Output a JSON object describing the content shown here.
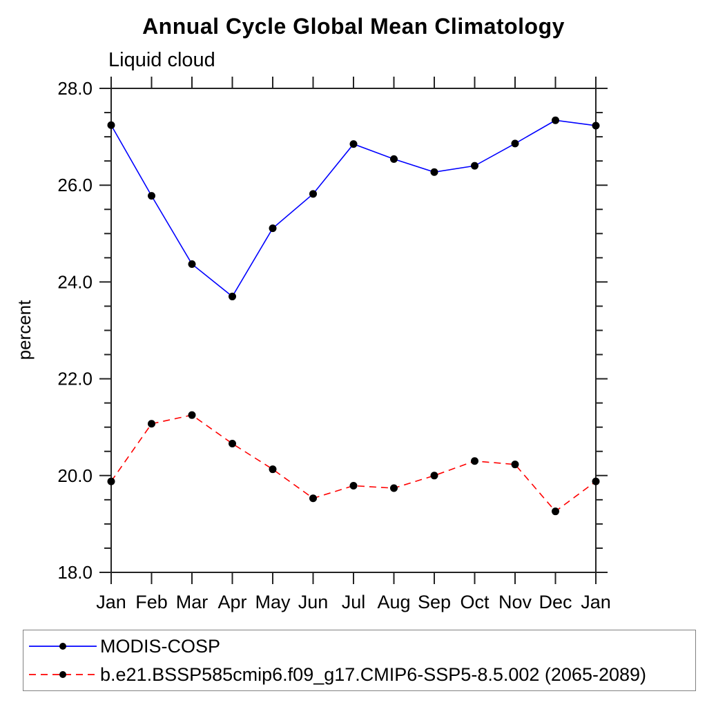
{
  "title": "Annual Cycle Global Mean Climatology",
  "subtitle": "Liquid cloud",
  "legend": {
    "entries": [
      {
        "label": "MODIS-COSP",
        "color": "#0000ff",
        "dash": "solid",
        "marker_color": "#000000"
      },
      {
        "label": "b.e21.BSSP585cmip6.f09_g17.CMIP6-SSP5-8.5.002 (2065-2089)",
        "color": "#ff0000",
        "dash": "dashed",
        "marker_color": "#000000"
      }
    ]
  },
  "chart_data": {
    "type": "line",
    "title": "Annual Cycle Global Mean Climatology",
    "subtitle": "Liquid cloud",
    "xlabel": "",
    "ylabel": "percent",
    "categories": [
      "Jan",
      "Feb",
      "Mar",
      "Apr",
      "May",
      "Jun",
      "Jul",
      "Aug",
      "Sep",
      "Oct",
      "Nov",
      "Dec",
      "Jan"
    ],
    "series": [
      {
        "name": "MODIS-COSP",
        "color": "#0000ff",
        "style": "solid",
        "marker": "filled-circle",
        "marker_color": "#000000",
        "values": [
          27.24,
          25.78,
          24.37,
          23.7,
          25.11,
          25.82,
          26.85,
          26.54,
          26.27,
          26.4,
          26.86,
          27.34,
          27.23
        ]
      },
      {
        "name": "b.e21.BSSP585cmip6.f09_g17.CMIP6-SSP5-8.5.002 (2065-2089)",
        "color": "#ff0000",
        "style": "dashed",
        "marker": "filled-circle",
        "marker_color": "#000000",
        "values": [
          19.88,
          21.07,
          21.25,
          20.66,
          20.13,
          19.53,
          19.79,
          19.74,
          20.0,
          20.3,
          20.23,
          19.26,
          19.88
        ]
      }
    ],
    "ylim": [
      18.0,
      28.0
    ],
    "ytick_interval": 2.0,
    "yminor_interval": 0.5,
    "ytick_labels": [
      "18.0",
      "20.0",
      "22.0",
      "24.0",
      "26.0",
      "28.0"
    ],
    "grid": false,
    "legend_position": "bottom",
    "axis_color": "#222222",
    "marker_color": "#000000"
  }
}
